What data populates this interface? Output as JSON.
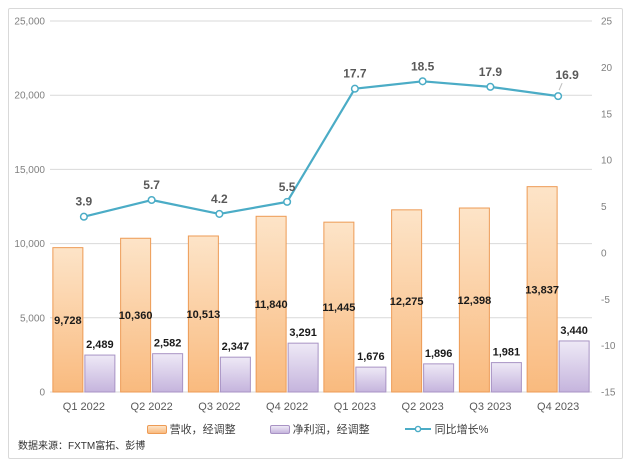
{
  "source_note": "数据来源：FXTM富拓、彭博",
  "legend": {
    "revenue_label": "营收，经调整",
    "net_profit_label": "净利润，经调整",
    "growth_label": "同比增长%"
  },
  "colors": {
    "revenue_border": "#ED9B55",
    "revenue_fill_top": "#FDE4C8",
    "revenue_fill_bottom": "#F9BA7E",
    "net_profit_border": "#A893C4",
    "net_profit_fill_top": "#EEE9F6",
    "net_profit_fill_bottom": "#C5B4DD",
    "growth_line": "#4BACC6",
    "grid": "#D9D9D9",
    "axis_text": "#808080",
    "category_text": "#595959",
    "bar_label_text": "#1A1A1A",
    "line_label_text": "#595959",
    "leader_line": "#BFBFBF"
  },
  "chart_data": {
    "type": "combo-bar-line",
    "categories": [
      "Q1 2022",
      "Q2 2022",
      "Q3 2022",
      "Q4 2022",
      "Q1 2023",
      "Q2 2023",
      "Q3 2023",
      "Q4 2023"
    ],
    "series": [
      {
        "name": "营收，经调整",
        "type": "bar",
        "axis": "left",
        "color_key": "revenue",
        "values": [
          9728,
          10360,
          10513,
          11840,
          11445,
          12275,
          12398,
          13837
        ],
        "labels": [
          "9,728",
          "10,360",
          "10,513",
          "11,840",
          "11,445",
          "12,275",
          "12,398",
          "13,837"
        ],
        "label_position": "center"
      },
      {
        "name": "净利润，经调整",
        "type": "bar",
        "axis": "left",
        "color_key": "net_profit",
        "values": [
          2489,
          2582,
          2347,
          3291,
          1676,
          1896,
          1981,
          3440
        ],
        "labels": [
          "2,489",
          "2,582",
          "2,347",
          "3,291",
          "1,676",
          "1,896",
          "1,981",
          "3,440"
        ],
        "label_position": "above"
      },
      {
        "name": "同比增长%",
        "type": "line",
        "axis": "right",
        "color_key": "growth",
        "values": [
          3.9,
          5.7,
          4.2,
          5.5,
          17.7,
          18.5,
          17.9,
          16.9
        ],
        "labels": [
          "3.9",
          "5.7",
          "4.2",
          "5.5",
          "17.7",
          "18.5",
          "17.9",
          "16.9"
        ],
        "label_position": "above"
      }
    ],
    "left_axis": {
      "min": 0,
      "max": 25000,
      "step": 5000,
      "tick_labels": [
        "0",
        "5,000",
        "10,000",
        "15,000",
        "20,000",
        "25,000"
      ]
    },
    "right_axis": {
      "min": -15,
      "max": 25,
      "step": 5,
      "tick_labels": [
        "-15",
        "-10",
        "-5",
        "0",
        "5",
        "10",
        "15",
        "20",
        "25"
      ]
    },
    "grid": true,
    "legend_position": "bottom"
  }
}
